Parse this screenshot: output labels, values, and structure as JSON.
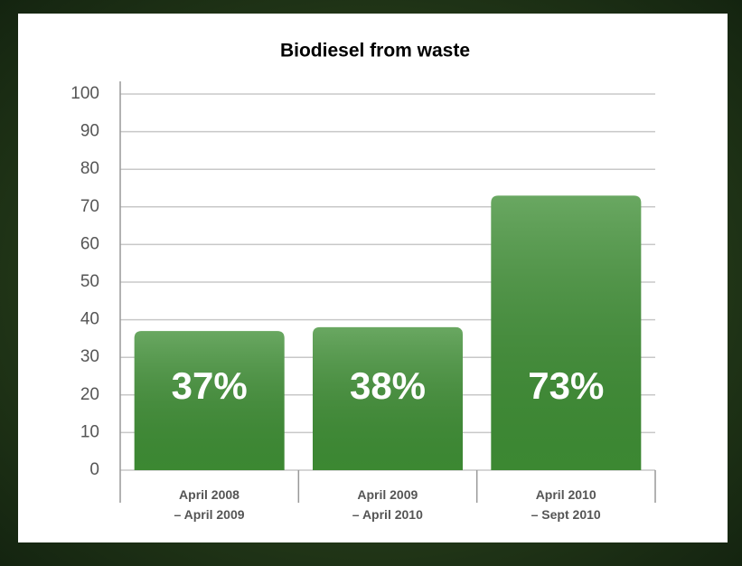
{
  "chart_data": {
    "type": "bar",
    "title": "Biodiesel from waste",
    "categories": [
      "April 2008\n– April 2009",
      "April 2009\n– April 2010",
      "April 2010\n– Sept 2010"
    ],
    "values": [
      37,
      38,
      73
    ],
    "value_labels": [
      "37%",
      "38%",
      "73%"
    ],
    "color": "#3f8f35",
    "ylim": [
      0,
      100
    ],
    "yticks": [
      0,
      10,
      20,
      30,
      40,
      50,
      60,
      70,
      80,
      90,
      100
    ],
    "grid": true
  }
}
